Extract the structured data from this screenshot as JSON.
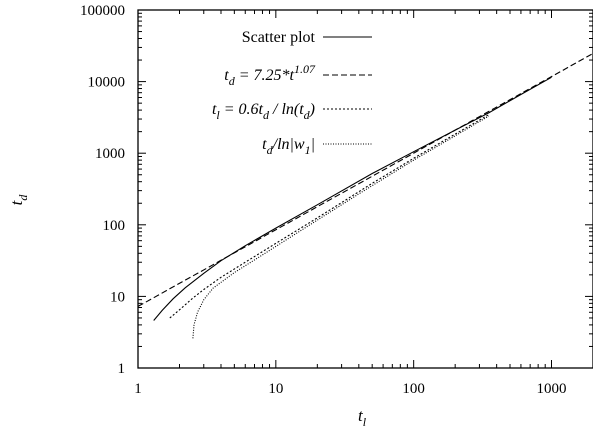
{
  "chart_data": {
    "type": "line",
    "title": "",
    "xlabel": {
      "base": "t",
      "sub": "l"
    },
    "ylabel": {
      "base": "t",
      "sub": "d"
    },
    "xscale": "log",
    "yscale": "log",
    "xlim": [
      1,
      2000
    ],
    "ylim": [
      1,
      100000
    ],
    "x_ticks": [
      1,
      10,
      100,
      1000
    ],
    "x_tick_labels": [
      "1",
      "10",
      "100",
      "1000"
    ],
    "y_ticks": [
      1,
      10,
      100,
      1000,
      10000,
      100000
    ],
    "y_tick_labels": [
      "1",
      "10",
      "100",
      "1000",
      "10000",
      "100000"
    ],
    "grid": false,
    "legend_position": "top-right",
    "series": [
      {
        "name": "Scatter plot",
        "style": "solid",
        "x": [
          1.3,
          1.5,
          1.8,
          2.2,
          3,
          4,
          6,
          10,
          20,
          50,
          100,
          200,
          350,
          600,
          1000
        ],
        "y": [
          4.6,
          6.4,
          9.3,
          13.2,
          21,
          31.5,
          51,
          90,
          190,
          520,
          1050,
          2100,
          3650,
          6600,
          11500
        ]
      },
      {
        "name": "t_d = 7.25*t^1.07",
        "style": "dashed",
        "fn": {
          "a": 7.25,
          "b": 1.07
        },
        "x": [
          1,
          10,
          100,
          1000,
          2000
        ],
        "y": [
          7.25,
          85,
          1000,
          11700,
          24600
        ]
      },
      {
        "name": "t_l = 0.6t_d / ln(t_d)",
        "style": "dotted",
        "x": [
          1.7,
          2,
          2.5,
          3,
          4,
          6,
          10,
          20,
          50,
          100,
          200,
          350
        ],
        "y": [
          5,
          6.5,
          9.5,
          12.5,
          18.5,
          30,
          55,
          125,
          380,
          850,
          1850,
          3450
        ]
      },
      {
        "name": "t_d/ln|w_1|",
        "style": "fine-dotted",
        "x": [
          2.5,
          2.55,
          2.7,
          3,
          3.5,
          5,
          8,
          15,
          40,
          100,
          200,
          350
        ],
        "y": [
          2.6,
          4,
          6,
          9,
          13,
          21.5,
          38,
          82,
          270,
          800,
          1750,
          3300
        ]
      }
    ]
  },
  "legend": [
    {
      "parts": [
        [
          "Scatter plot",
          ""
        ]
      ]
    },
    {
      "parts": [
        [
          "t",
          "i"
        ],
        [
          "d",
          "sub"
        ],
        [
          " = 7.25*t",
          "i"
        ],
        [
          "1.07",
          "sup"
        ]
      ]
    },
    {
      "parts": [
        [
          "t",
          "i"
        ],
        [
          "l",
          "sub"
        ],
        [
          " = 0.6t",
          "i"
        ],
        [
          "d",
          "sub"
        ],
        [
          " / ln(t",
          "i"
        ],
        [
          "d",
          "sub"
        ],
        [
          ")",
          "i"
        ]
      ]
    },
    {
      "parts": [
        [
          "t",
          "i"
        ],
        [
          "d",
          "sub"
        ],
        [
          "/ln|w",
          "i"
        ],
        [
          "1",
          "sub"
        ],
        [
          "|",
          "i"
        ]
      ]
    }
  ]
}
